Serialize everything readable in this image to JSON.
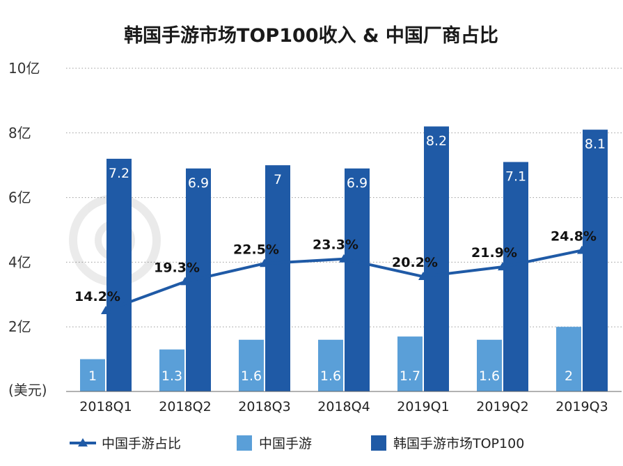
{
  "chart_data": {
    "type": "bar",
    "title": "韩国手游市场TOP100收入 & 中国厂商占比",
    "unit_label": "(美元)",
    "categories": [
      "2018Q1",
      "2018Q2",
      "2018Q3",
      "2018Q4",
      "2019Q1",
      "2019Q2",
      "2019Q3"
    ],
    "ylim": [
      0,
      10
    ],
    "yticks": [
      {
        "value": 2,
        "label": "2亿"
      },
      {
        "value": 4,
        "label": "4亿"
      },
      {
        "value": 6,
        "label": "6亿"
      },
      {
        "value": 8,
        "label": "8亿"
      },
      {
        "value": 10,
        "label": "10亿"
      }
    ],
    "grid": true,
    "legend_position": "bottom",
    "series": [
      {
        "name": "中国手游",
        "kind": "bar",
        "color": "#5a9fd8",
        "values": [
          1,
          1.3,
          1.6,
          1.6,
          1.7,
          1.6,
          2
        ],
        "labels": [
          "1",
          "1.3",
          "1.6",
          "1.6",
          "1.7",
          "1.6",
          "2"
        ]
      },
      {
        "name": "韩国手游市场TOP100",
        "kind": "bar",
        "color": "#1f5aa6",
        "values": [
          7.2,
          6.9,
          7,
          6.9,
          8.2,
          7.1,
          8.1
        ],
        "labels": [
          "7.2",
          "6.9",
          "7",
          "6.9",
          "8.2",
          "7.1",
          "8.1"
        ]
      },
      {
        "name": "中国手游占比",
        "kind": "line",
        "color": "#1f5aa6",
        "values": [
          14.2,
          19.3,
          22.5,
          23.3,
          20.2,
          21.9,
          24.8
        ],
        "labels": [
          "14.2%",
          "19.3%",
          "22.5%",
          "23.3%",
          "20.2%",
          "21.9%",
          "24.8%"
        ]
      }
    ]
  }
}
